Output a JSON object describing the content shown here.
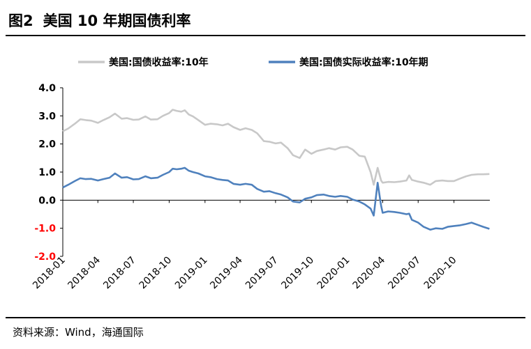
{
  "figure": {
    "number": "图2",
    "title": "美国 10 年期国债利率",
    "source": "资料来源：Wind，海通国际"
  },
  "chart_data": {
    "type": "line",
    "title": "美国 10 年期国债利率",
    "xlabel": "",
    "ylabel": "",
    "ylim": [
      -2.0,
      4.0
    ],
    "yticks": [
      4.0,
      3.0,
      2.0,
      1.0,
      0.0,
      -1.0,
      -2.0
    ],
    "ytick_labels": [
      "4.0",
      "3.0",
      "2.0",
      "1.0",
      "0.0",
      "-1.0",
      "-2.0"
    ],
    "negative_tick_color": "#ff0000",
    "xlim": [
      "2018-01",
      "2021-01"
    ],
    "xticks": [
      "2018-01",
      "2018-04",
      "2018-07",
      "2018-10",
      "2019-01",
      "2019-04",
      "2019-07",
      "2019-10",
      "2020-01",
      "2020-04",
      "2020-07",
      "2020-10"
    ],
    "legend_position": "top",
    "grid": false,
    "series": [
      {
        "name": "美国:国债收益率:10年",
        "color": "#c8c8c8",
        "points": [
          [
            "2018-01-01",
            2.45
          ],
          [
            "2018-01-15",
            2.55
          ],
          [
            "2018-02-01",
            2.72
          ],
          [
            "2018-02-15",
            2.88
          ],
          [
            "2018-03-01",
            2.85
          ],
          [
            "2018-03-15",
            2.83
          ],
          [
            "2018-04-01",
            2.75
          ],
          [
            "2018-04-15",
            2.85
          ],
          [
            "2018-05-01",
            2.95
          ],
          [
            "2018-05-15",
            3.08
          ],
          [
            "2018-06-01",
            2.9
          ],
          [
            "2018-06-15",
            2.92
          ],
          [
            "2018-07-01",
            2.86
          ],
          [
            "2018-07-15",
            2.87
          ],
          [
            "2018-08-01",
            2.98
          ],
          [
            "2018-08-15",
            2.87
          ],
          [
            "2018-09-01",
            2.88
          ],
          [
            "2018-09-15",
            3.0
          ],
          [
            "2018-10-01",
            3.1
          ],
          [
            "2018-10-10",
            3.22
          ],
          [
            "2018-10-20",
            3.18
          ],
          [
            "2018-11-01",
            3.15
          ],
          [
            "2018-11-10",
            3.2
          ],
          [
            "2018-11-20",
            3.05
          ],
          [
            "2018-12-01",
            2.98
          ],
          [
            "2018-12-15",
            2.85
          ],
          [
            "2019-01-01",
            2.68
          ],
          [
            "2019-01-15",
            2.72
          ],
          [
            "2019-02-01",
            2.7
          ],
          [
            "2019-02-15",
            2.66
          ],
          [
            "2019-03-01",
            2.72
          ],
          [
            "2019-03-15",
            2.6
          ],
          [
            "2019-04-01",
            2.5
          ],
          [
            "2019-04-15",
            2.56
          ],
          [
            "2019-05-01",
            2.5
          ],
          [
            "2019-05-15",
            2.38
          ],
          [
            "2019-06-01",
            2.1
          ],
          [
            "2019-06-15",
            2.08
          ],
          [
            "2019-07-01",
            2.02
          ],
          [
            "2019-07-15",
            2.05
          ],
          [
            "2019-08-01",
            1.85
          ],
          [
            "2019-08-15",
            1.6
          ],
          [
            "2019-09-01",
            1.5
          ],
          [
            "2019-09-15",
            1.8
          ],
          [
            "2019-10-01",
            1.65
          ],
          [
            "2019-10-15",
            1.75
          ],
          [
            "2019-11-01",
            1.8
          ],
          [
            "2019-11-15",
            1.85
          ],
          [
            "2019-12-01",
            1.8
          ],
          [
            "2019-12-15",
            1.88
          ],
          [
            "2020-01-01",
            1.9
          ],
          [
            "2020-01-15",
            1.8
          ],
          [
            "2020-02-01",
            1.58
          ],
          [
            "2020-02-15",
            1.55
          ],
          [
            "2020-03-01",
            1.0
          ],
          [
            "2020-03-09",
            0.55
          ],
          [
            "2020-03-19",
            1.15
          ],
          [
            "2020-03-28",
            0.7
          ],
          [
            "2020-04-01",
            0.62
          ],
          [
            "2020-04-15",
            0.65
          ],
          [
            "2020-05-01",
            0.64
          ],
          [
            "2020-05-15",
            0.66
          ],
          [
            "2020-06-01",
            0.7
          ],
          [
            "2020-06-08",
            0.88
          ],
          [
            "2020-06-15",
            0.72
          ],
          [
            "2020-07-01",
            0.66
          ],
          [
            "2020-07-15",
            0.62
          ],
          [
            "2020-08-01",
            0.55
          ],
          [
            "2020-08-15",
            0.68
          ],
          [
            "2020-09-01",
            0.7
          ],
          [
            "2020-09-15",
            0.68
          ],
          [
            "2020-10-01",
            0.68
          ],
          [
            "2020-10-15",
            0.76
          ],
          [
            "2020-11-01",
            0.85
          ],
          [
            "2020-11-15",
            0.9
          ],
          [
            "2020-12-01",
            0.92
          ],
          [
            "2020-12-15",
            0.92
          ],
          [
            "2020-12-31",
            0.93
          ]
        ]
      },
      {
        "name": "美国:国债实际收益率:10年期",
        "color": "#4f81bd",
        "points": [
          [
            "2018-01-01",
            0.45
          ],
          [
            "2018-01-15",
            0.55
          ],
          [
            "2018-02-01",
            0.68
          ],
          [
            "2018-02-15",
            0.78
          ],
          [
            "2018-03-01",
            0.75
          ],
          [
            "2018-03-15",
            0.76
          ],
          [
            "2018-04-01",
            0.7
          ],
          [
            "2018-04-15",
            0.75
          ],
          [
            "2018-05-01",
            0.8
          ],
          [
            "2018-05-15",
            0.95
          ],
          [
            "2018-06-01",
            0.8
          ],
          [
            "2018-06-15",
            0.82
          ],
          [
            "2018-07-01",
            0.74
          ],
          [
            "2018-07-15",
            0.75
          ],
          [
            "2018-08-01",
            0.85
          ],
          [
            "2018-08-15",
            0.78
          ],
          [
            "2018-09-01",
            0.8
          ],
          [
            "2018-09-15",
            0.9
          ],
          [
            "2018-10-01",
            1.0
          ],
          [
            "2018-10-10",
            1.12
          ],
          [
            "2018-10-20",
            1.1
          ],
          [
            "2018-11-01",
            1.12
          ],
          [
            "2018-11-10",
            1.15
          ],
          [
            "2018-11-20",
            1.05
          ],
          [
            "2018-12-01",
            1.0
          ],
          [
            "2018-12-15",
            0.95
          ],
          [
            "2019-01-01",
            0.85
          ],
          [
            "2019-01-15",
            0.82
          ],
          [
            "2019-02-01",
            0.75
          ],
          [
            "2019-02-15",
            0.72
          ],
          [
            "2019-03-01",
            0.7
          ],
          [
            "2019-03-15",
            0.58
          ],
          [
            "2019-04-01",
            0.55
          ],
          [
            "2019-04-15",
            0.58
          ],
          [
            "2019-05-01",
            0.55
          ],
          [
            "2019-05-15",
            0.4
          ],
          [
            "2019-06-01",
            0.3
          ],
          [
            "2019-06-15",
            0.32
          ],
          [
            "2019-07-01",
            0.25
          ],
          [
            "2019-07-15",
            0.2
          ],
          [
            "2019-08-01",
            0.1
          ],
          [
            "2019-08-15",
            -0.05
          ],
          [
            "2019-09-01",
            -0.08
          ],
          [
            "2019-09-15",
            0.05
          ],
          [
            "2019-10-01",
            0.1
          ],
          [
            "2019-10-15",
            0.18
          ],
          [
            "2019-11-01",
            0.2
          ],
          [
            "2019-11-15",
            0.15
          ],
          [
            "2019-12-01",
            0.12
          ],
          [
            "2019-12-15",
            0.15
          ],
          [
            "2020-01-01",
            0.12
          ],
          [
            "2020-01-15",
            0.02
          ],
          [
            "2020-02-01",
            -0.05
          ],
          [
            "2020-02-15",
            -0.15
          ],
          [
            "2020-03-01",
            -0.3
          ],
          [
            "2020-03-09",
            -0.55
          ],
          [
            "2020-03-19",
            0.62
          ],
          [
            "2020-03-28",
            -0.2
          ],
          [
            "2020-04-01",
            -0.45
          ],
          [
            "2020-04-15",
            -0.4
          ],
          [
            "2020-05-01",
            -0.42
          ],
          [
            "2020-05-15",
            -0.45
          ],
          [
            "2020-06-01",
            -0.5
          ],
          [
            "2020-06-08",
            -0.48
          ],
          [
            "2020-06-15",
            -0.7
          ],
          [
            "2020-07-01",
            -0.8
          ],
          [
            "2020-07-15",
            -0.95
          ],
          [
            "2020-08-01",
            -1.05
          ],
          [
            "2020-08-15",
            -1.0
          ],
          [
            "2020-09-01",
            -1.02
          ],
          [
            "2020-09-15",
            -0.95
          ],
          [
            "2020-10-01",
            -0.92
          ],
          [
            "2020-10-15",
            -0.9
          ],
          [
            "2020-11-01",
            -0.85
          ],
          [
            "2020-11-15",
            -0.8
          ],
          [
            "2020-12-01",
            -0.88
          ],
          [
            "2020-12-15",
            -0.95
          ],
          [
            "2020-12-31",
            -1.02
          ]
        ]
      }
    ]
  }
}
